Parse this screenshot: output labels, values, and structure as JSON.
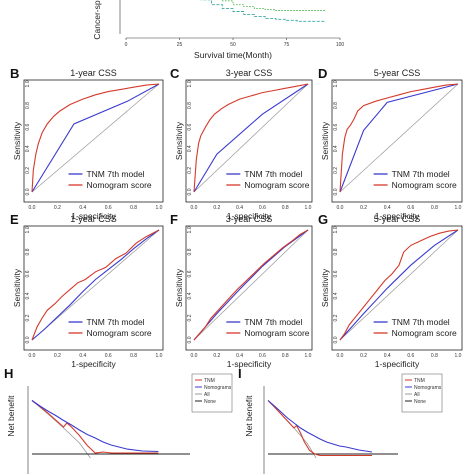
{
  "chart_data": [
    {
      "id": "A",
      "type": "line",
      "panel_label": "",
      "xlabel": "Survival time(Month)",
      "ylabel": "Cancer-sp",
      "x_ticks": [
        0,
        25,
        50,
        75,
        100
      ],
      "xlim": [
        0,
        100
      ],
      "series": [
        {
          "color": "#3aa7a4",
          "x": [
            30,
            35,
            40,
            45,
            50,
            55,
            60,
            65,
            70,
            75,
            80,
            85,
            93
          ],
          "y": [
            1.0,
            0.95,
            0.9,
            0.86,
            0.83,
            0.8,
            0.78,
            0.76,
            0.75,
            0.74,
            0.73,
            0.73,
            0.72
          ]
        },
        {
          "color": "#4bb34b",
          "x": [
            35,
            40,
            45,
            50,
            55,
            60,
            65,
            70,
            80,
            93
          ],
          "y": [
            1.0,
            0.97,
            0.94,
            0.9,
            0.88,
            0.86,
            0.85,
            0.84,
            0.84,
            0.84
          ]
        }
      ]
    },
    {
      "id": "B",
      "type": "line",
      "panel_label": "B",
      "title": "1-year CSS",
      "xlabel": "1-specificity",
      "ylabel": "Sensitivity",
      "ticks": [
        "0.0",
        "0.2",
        "0.4",
        "0.6",
        "0.8",
        "1.0"
      ],
      "xlim": [
        0,
        1
      ],
      "ylim": [
        0,
        1
      ],
      "legend": [
        "TNM 7th model",
        "Nomogram score"
      ],
      "series": [
        {
          "name": "TNM 7th model",
          "color": "#3a3ad0",
          "x": [
            0,
            0.33,
            0.75,
            1.0
          ],
          "y": [
            0,
            0.63,
            0.84,
            1.0
          ]
        },
        {
          "name": "Nomogram score",
          "color": "#d43a2a",
          "x": [
            0,
            0.01,
            0.03,
            0.05,
            0.08,
            0.12,
            0.17,
            0.22,
            0.3,
            0.4,
            0.5,
            0.6,
            0.7,
            0.8,
            0.9,
            1.0
          ],
          "y": [
            0,
            0.2,
            0.35,
            0.45,
            0.55,
            0.63,
            0.7,
            0.75,
            0.81,
            0.86,
            0.9,
            0.93,
            0.95,
            0.97,
            0.99,
            1.0
          ]
        }
      ]
    },
    {
      "id": "C",
      "type": "line",
      "panel_label": "C",
      "title": "3-year CSS",
      "xlabel": "1-specificity",
      "ylabel": "Sensitivity",
      "ticks": [
        "0.0",
        "0.2",
        "0.4",
        "0.6",
        "0.8",
        "1.0"
      ],
      "xlim": [
        0,
        1
      ],
      "ylim": [
        0,
        1
      ],
      "legend": [
        "TNM 7th model",
        "Nomogram score"
      ],
      "series": [
        {
          "name": "TNM 7th model",
          "color": "#3a3ad0",
          "x": [
            0,
            0.2,
            0.6,
            1.0
          ],
          "y": [
            0,
            0.35,
            0.72,
            1.0
          ]
        },
        {
          "name": "Nomogram score",
          "color": "#d43a2a",
          "x": [
            0,
            0.02,
            0.04,
            0.06,
            0.1,
            0.14,
            0.18,
            0.24,
            0.3,
            0.4,
            0.5,
            0.6,
            0.7,
            0.8,
            0.9,
            1.0
          ],
          "y": [
            0,
            0.3,
            0.45,
            0.52,
            0.6,
            0.67,
            0.72,
            0.77,
            0.81,
            0.86,
            0.89,
            0.92,
            0.94,
            0.96,
            0.98,
            1.0
          ]
        }
      ]
    },
    {
      "id": "D",
      "type": "line",
      "panel_label": "D",
      "title": "5-year CSS",
      "xlabel": "1-specificity",
      "ylabel": "Sensitivity",
      "ticks": [
        "0.0",
        "0.2",
        "0.4",
        "0.6",
        "0.8",
        "1.0"
      ],
      "xlim": [
        0,
        1
      ],
      "ylim": [
        0,
        1
      ],
      "legend": [
        "TNM 7th model",
        "Nomogram score"
      ],
      "series": [
        {
          "name": "TNM 7th model",
          "color": "#3a3ad0",
          "x": [
            0,
            0.2,
            0.4,
            1.0
          ],
          "y": [
            0,
            0.57,
            0.83,
            1.0
          ]
        },
        {
          "name": "Nomogram score",
          "color": "#d43a2a",
          "x": [
            0,
            0.02,
            0.04,
            0.06,
            0.09,
            0.12,
            0.15,
            0.2,
            0.3,
            0.4,
            0.5,
            0.6,
            0.7,
            0.8,
            0.9,
            1.0
          ],
          "y": [
            0,
            0.35,
            0.5,
            0.58,
            0.62,
            0.68,
            0.75,
            0.8,
            0.84,
            0.87,
            0.9,
            0.93,
            0.95,
            0.97,
            0.99,
            1.0
          ]
        }
      ]
    },
    {
      "id": "E",
      "type": "line",
      "panel_label": "E",
      "title": "1-year CSS",
      "xlabel": "1-specificity",
      "ylabel": "Sensitivity",
      "ticks": [
        "0.0",
        "0.2",
        "0.4",
        "0.6",
        "0.8",
        "1.0"
      ],
      "xlim": [
        0,
        1
      ],
      "ylim": [
        0,
        1
      ],
      "legend": [
        "TNM 7th model",
        "Nomogram score"
      ],
      "series": [
        {
          "name": "TNM 7th model",
          "color": "#3a3ad0",
          "x": [
            0,
            0.1,
            0.2,
            0.3,
            0.4,
            0.5,
            0.6,
            0.7,
            0.8,
            0.9,
            1.0
          ],
          "y": [
            0,
            0.1,
            0.21,
            0.32,
            0.44,
            0.55,
            0.64,
            0.73,
            0.83,
            0.92,
            1.0
          ]
        },
        {
          "name": "Nomogram score",
          "color": "#d43a2a",
          "x": [
            0,
            0.04,
            0.08,
            0.12,
            0.18,
            0.24,
            0.3,
            0.36,
            0.42,
            0.5,
            0.58,
            0.66,
            0.74,
            0.82,
            0.9,
            1.0
          ],
          "y": [
            0,
            0.12,
            0.2,
            0.27,
            0.33,
            0.4,
            0.46,
            0.52,
            0.55,
            0.62,
            0.66,
            0.74,
            0.79,
            0.88,
            0.94,
            1.0
          ]
        }
      ]
    },
    {
      "id": "F",
      "type": "line",
      "panel_label": "F",
      "title": "3-year CSS",
      "xlabel": "1-specificity",
      "ylabel": "Sensitivity",
      "ticks": [
        "0.0",
        "0.2",
        "0.4",
        "0.6",
        "0.8",
        "1.0"
      ],
      "xlim": [
        0,
        1
      ],
      "ylim": [
        0,
        1
      ],
      "legend": [
        "TNM 7th model",
        "Nomogram score"
      ],
      "series": [
        {
          "name": "TNM 7th model",
          "color": "#3a3ad0",
          "x": [
            0,
            0.2,
            0.4,
            0.6,
            0.8,
            1.0
          ],
          "y": [
            0,
            0.24,
            0.46,
            0.67,
            0.85,
            1.0
          ]
        },
        {
          "name": "Nomogram score",
          "color": "#d43a2a",
          "x": [
            0,
            0.05,
            0.1,
            0.15,
            0.22,
            0.3,
            0.38,
            0.46,
            0.54,
            0.62,
            0.7,
            0.78,
            0.86,
            0.93,
            1.0
          ],
          "y": [
            0,
            0.06,
            0.12,
            0.2,
            0.28,
            0.37,
            0.46,
            0.54,
            0.62,
            0.7,
            0.77,
            0.84,
            0.9,
            0.96,
            1.0
          ]
        }
      ]
    },
    {
      "id": "G",
      "type": "line",
      "panel_label": "G",
      "title": "5-year CSS",
      "xlabel": "1-specificity",
      "ylabel": "Sensitivity",
      "ticks": [
        "0.0",
        "0.2",
        "0.4",
        "0.6",
        "0.8",
        "1.0"
      ],
      "xlim": [
        0,
        1
      ],
      "ylim": [
        0,
        1
      ],
      "legend": [
        "TNM 7th model",
        "Nomogram score"
      ],
      "series": [
        {
          "name": "TNM 7th model",
          "color": "#3a3ad0",
          "x": [
            0,
            0.2,
            0.4,
            0.6,
            0.8,
            1.0
          ],
          "y": [
            0,
            0.24,
            0.47,
            0.68,
            0.86,
            1.0
          ]
        },
        {
          "name": "Nomogram score",
          "color": "#d43a2a",
          "x": [
            0,
            0.04,
            0.08,
            0.14,
            0.2,
            0.26,
            0.32,
            0.38,
            0.44,
            0.5,
            0.54,
            0.6,
            0.68,
            0.76,
            0.84,
            0.92,
            1.0
          ],
          "y": [
            0,
            0.06,
            0.14,
            0.22,
            0.3,
            0.38,
            0.46,
            0.54,
            0.6,
            0.68,
            0.8,
            0.86,
            0.9,
            0.94,
            0.97,
            0.99,
            1.0
          ]
        }
      ]
    },
    {
      "id": "H",
      "type": "line",
      "panel_label": "H",
      "xlabel": "",
      "ylabel": "Net benefit",
      "xlim": [
        0,
        1
      ],
      "ylim": [
        -0.2,
        1
      ],
      "legend": [
        "TNM",
        "Nomograms",
        "All",
        "None"
      ],
      "series": [
        {
          "name": "TNM",
          "color": "#d43a2a",
          "x": [
            0,
            0.05,
            0.1,
            0.15,
            0.2,
            0.22,
            0.25,
            0.3,
            0.35,
            0.4,
            0.45,
            0.5,
            0.6,
            0.7,
            0.8
          ],
          "y": [
            0.95,
            0.83,
            0.7,
            0.56,
            0.42,
            0.5,
            0.42,
            0.25,
            0.05,
            -0.1,
            -0.08,
            -0.1,
            -0.1,
            -0.1,
            -0.1
          ]
        },
        {
          "name": "Nomograms",
          "color": "#3a3ad0",
          "x": [
            0,
            0.05,
            0.1,
            0.15,
            0.2,
            0.25,
            0.3,
            0.35,
            0.4,
            0.45,
            0.5,
            0.55,
            0.6,
            0.7,
            0.8
          ],
          "y": [
            0.95,
            0.84,
            0.74,
            0.65,
            0.55,
            0.46,
            0.36,
            0.27,
            0.2,
            0.12,
            0.06,
            0.02,
            -0.02,
            -0.06,
            -0.07
          ]
        },
        {
          "name": "All",
          "color": "#9a9a9a",
          "x": [
            0,
            0.1,
            0.2,
            0.3,
            0.37
          ],
          "y": [
            0.95,
            0.68,
            0.4,
            0.1,
            -0.2
          ]
        },
        {
          "name": "None",
          "color": "#222222",
          "x": [
            0,
            1.0
          ],
          "y": [
            -0.12,
            -0.12
          ]
        }
      ]
    },
    {
      "id": "I",
      "type": "line",
      "panel_label": "I",
      "xlabel": "",
      "ylabel": "Net benefit",
      "xlim": [
        0,
        1
      ],
      "ylim": [
        -0.2,
        1
      ],
      "legend": [
        "TNM",
        "Nomograms",
        "All",
        "None"
      ],
      "series": [
        {
          "name": "TNM",
          "color": "#d43a2a",
          "x": [
            0,
            0.05,
            0.1,
            0.15,
            0.2,
            0.22,
            0.25,
            0.28,
            0.32,
            0.36,
            0.4,
            0.5,
            0.6,
            0.7,
            0.8
          ],
          "y": [
            0.95,
            0.82,
            0.68,
            0.54,
            0.4,
            0.45,
            0.3,
            0.12,
            -0.05,
            -0.12,
            -0.15,
            -0.15,
            -0.15,
            -0.15,
            -0.15
          ]
        },
        {
          "name": "Nomograms",
          "color": "#3a3ad0",
          "x": [
            0,
            0.05,
            0.1,
            0.15,
            0.2,
            0.25,
            0.3,
            0.35,
            0.4,
            0.45,
            0.5,
            0.55,
            0.6,
            0.7,
            0.8
          ],
          "y": [
            0.95,
            0.84,
            0.72,
            0.6,
            0.5,
            0.4,
            0.32,
            0.25,
            0.18,
            0.12,
            0.08,
            0.04,
            0.02,
            -0.04,
            -0.08
          ]
        },
        {
          "name": "All",
          "color": "#9a9a9a",
          "x": [
            0,
            0.1,
            0.2,
            0.3,
            0.37
          ],
          "y": [
            0.95,
            0.68,
            0.4,
            0.1,
            -0.2
          ]
        },
        {
          "name": "None",
          "color": "#222222",
          "x": [
            0,
            1.0
          ],
          "y": [
            -0.12,
            -0.12
          ]
        }
      ]
    }
  ]
}
